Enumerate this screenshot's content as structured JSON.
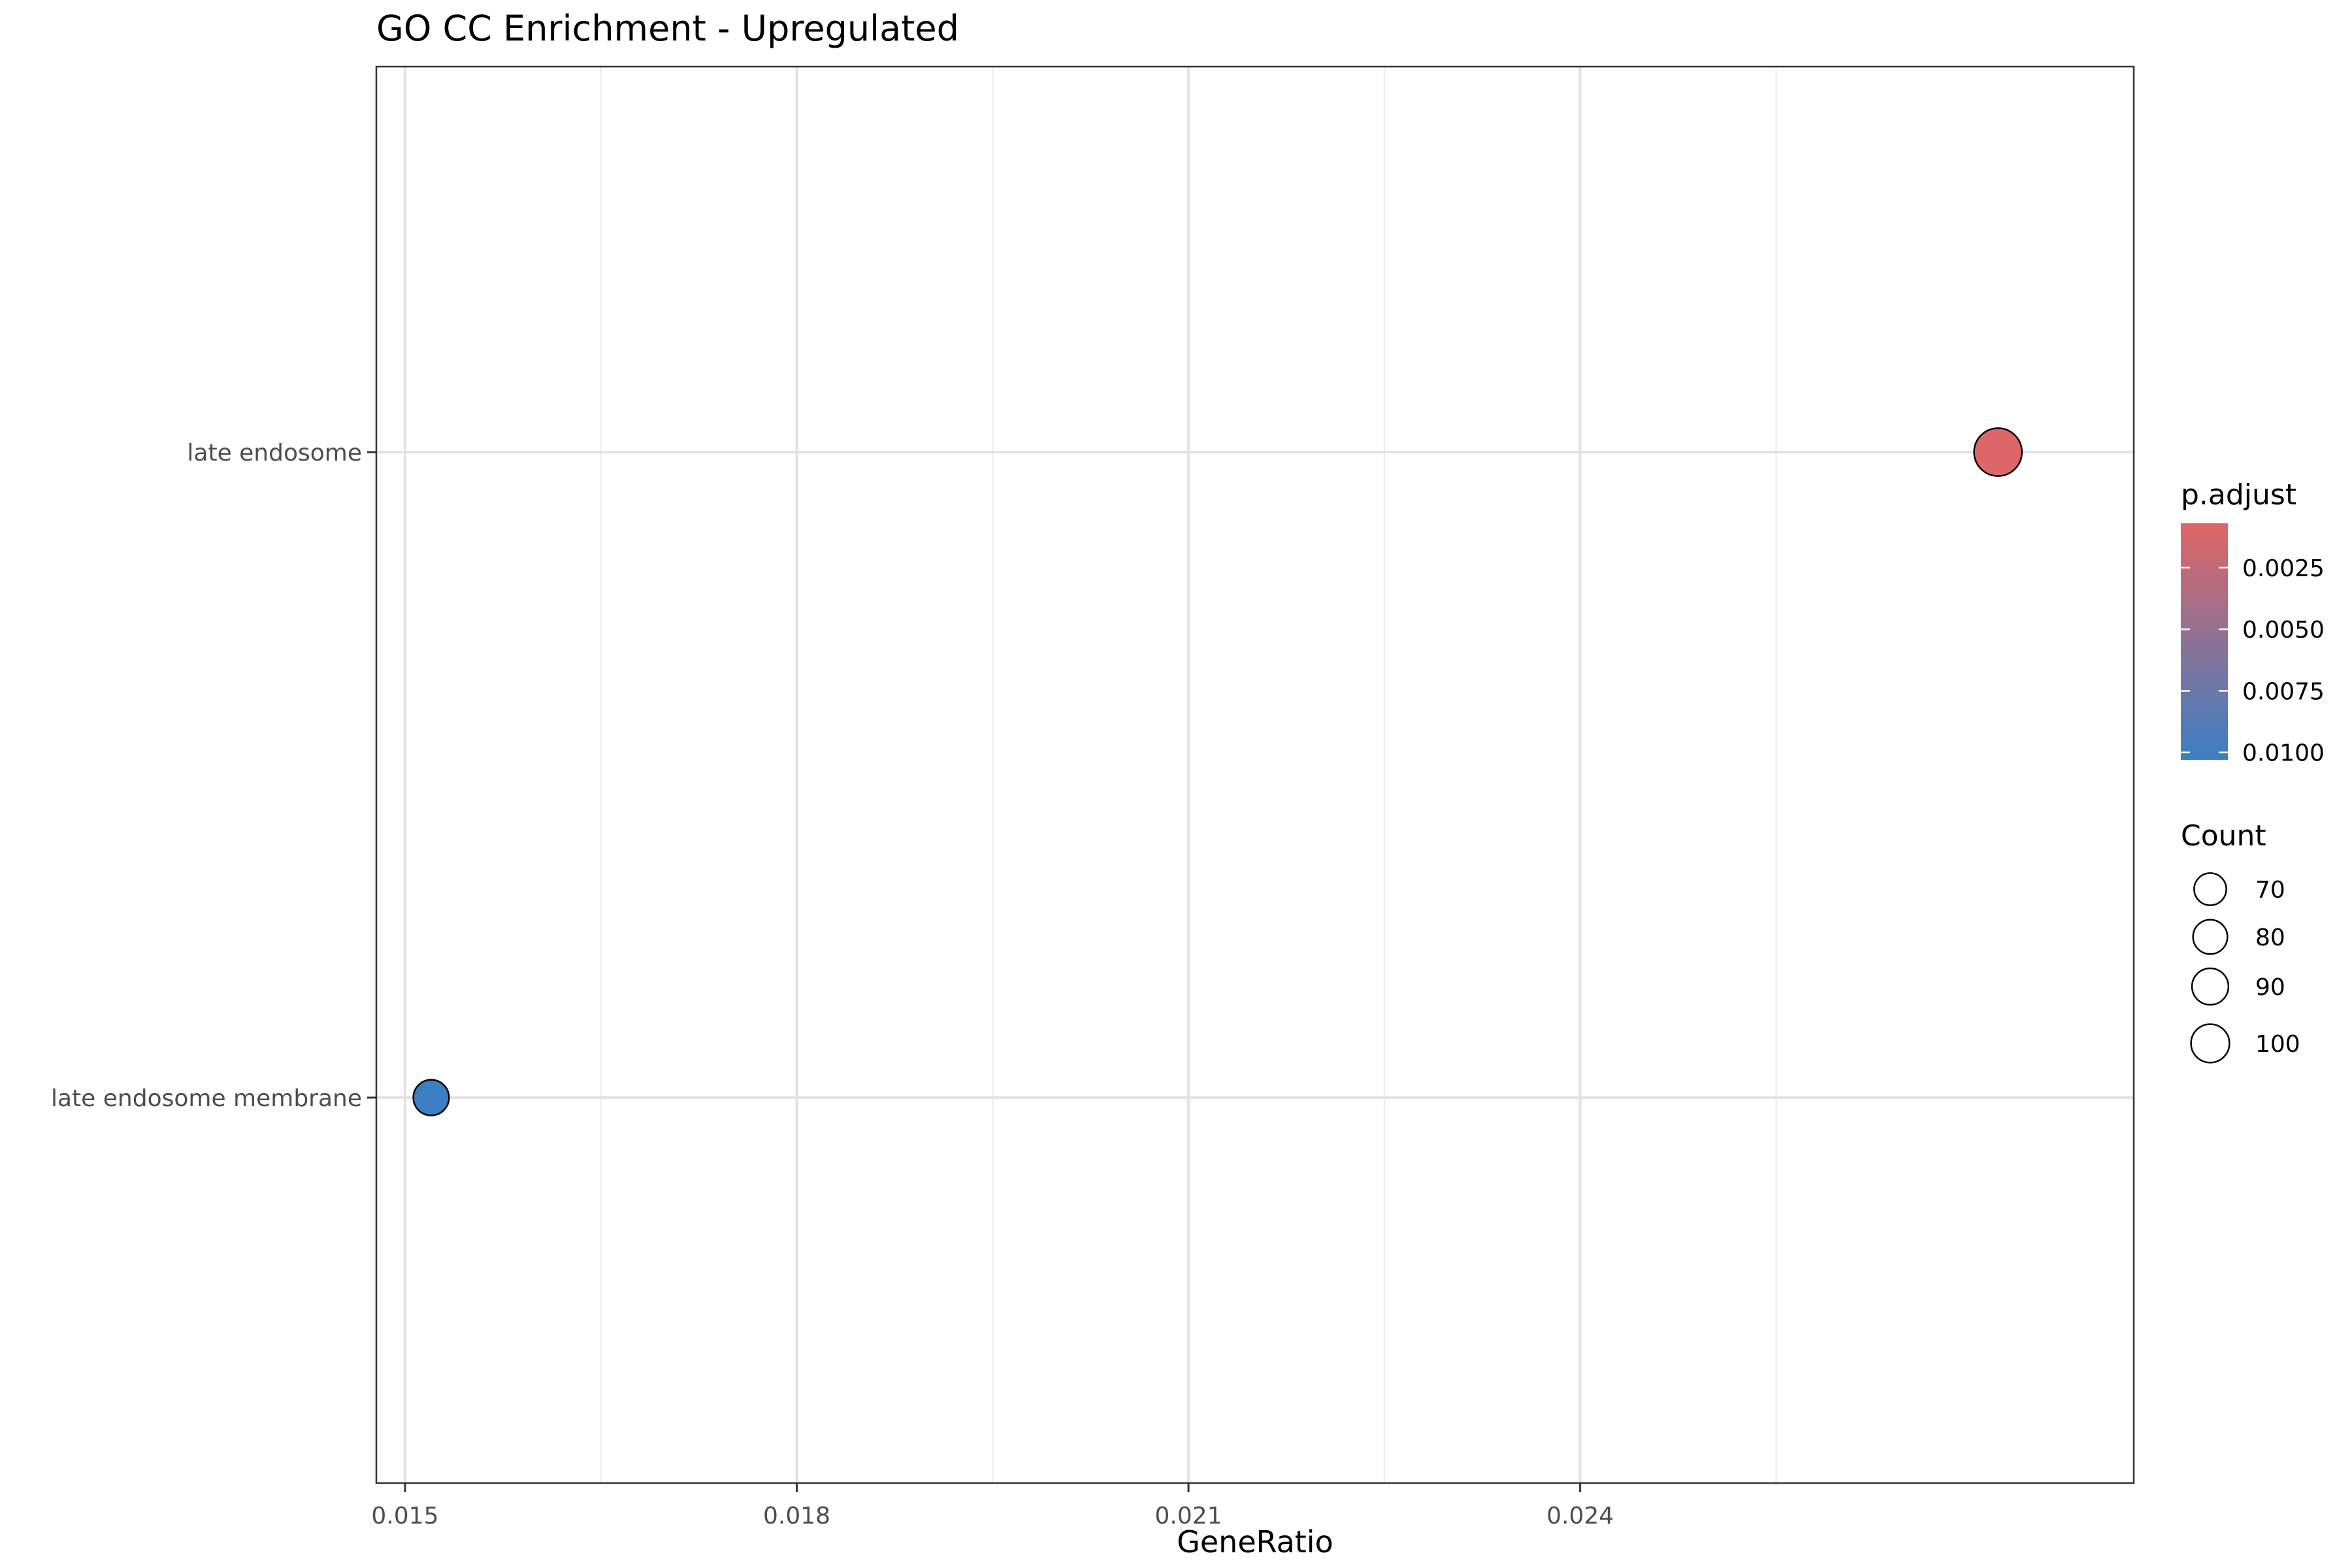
{
  "chart_data": {
    "type": "scatter",
    "title": "GO CC Enrichment - Upregulated",
    "xlabel": "GeneRatio",
    "ylabel": "",
    "categories": [
      "late endosome membrane",
      "late endosome"
    ],
    "xlim": [
      0.01478,
      0.02824
    ],
    "xticks": [
      0.015,
      0.018,
      0.021,
      0.024
    ],
    "xtick_labels": [
      "0.015",
      "0.018",
      "0.021",
      "0.024"
    ],
    "grid": true,
    "points": [
      {
        "term": "late endosome",
        "gene_ratio": 0.0272,
        "count": 104,
        "p_adjust": 0.0009
      },
      {
        "term": "late endosome membrane",
        "gene_ratio": 0.0152,
        "count": 58,
        "p_adjust": 0.0103
      }
    ],
    "color_legend": {
      "title": "p.adjust",
      "ticks": [
        0.0025,
        0.005,
        0.0075,
        0.01
      ],
      "tick_labels": [
        "0.0025",
        "0.0050",
        "0.0075",
        "0.0100"
      ],
      "range": [
        0.0007,
        0.0103
      ],
      "low_color": "#e06666",
      "high_color": "#3a7fc4"
    },
    "size_legend": {
      "title": "Count",
      "values": [
        70,
        80,
        90,
        100
      ],
      "labels": [
        "70",
        "80",
        "90",
        "100"
      ]
    },
    "legend_position": "right"
  }
}
